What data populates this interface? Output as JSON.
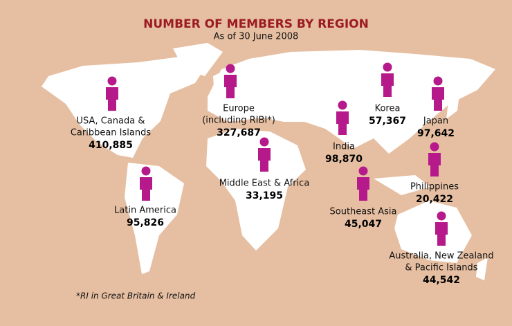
{
  "title": "NUMBER OF MEMBERS BY REGION",
  "subtitle": "As of 30 June 2008",
  "regions": [
    {
      "name": [
        "USA, Canada &",
        "Caribbean Islands"
      ],
      "members": "410,885"
    },
    {
      "name": [
        "Europe",
        "(including RIBI*)"
      ],
      "members": "327,687"
    },
    {
      "name": [
        "Middle East & Africa"
      ],
      "members": "33,195"
    },
    {
      "name": [
        "Latin America"
      ],
      "members": "95,826"
    },
    {
      "name": [
        "India"
      ],
      "members": "98,870"
    },
    {
      "name": [
        "Korea"
      ],
      "members": "57,367"
    },
    {
      "name": [
        "Japan"
      ],
      "members": "97,642"
    },
    {
      "name": [
        "Philippines"
      ],
      "members": "20,422"
    },
    {
      "name": [
        "Southeast Asia"
      ],
      "members": "45,047"
    },
    {
      "name": [
        "Australia, New Zealand",
        "& Pacific Islands"
      ],
      "members": "44,542"
    }
  ],
  "footnote": "*RI in Great Britain & Ireland"
}
